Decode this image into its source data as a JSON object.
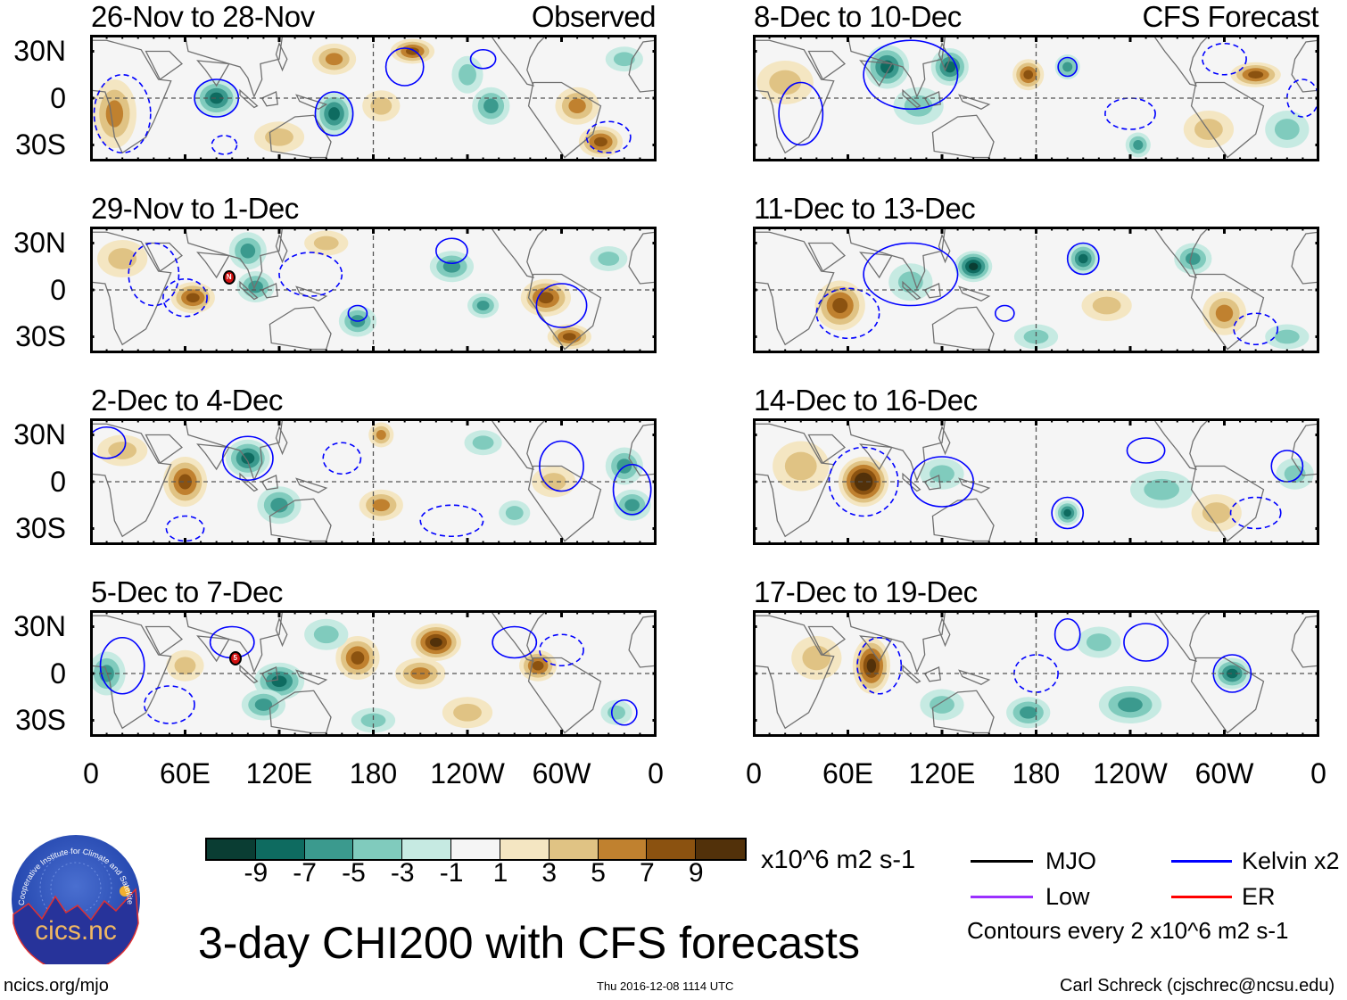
{
  "chart_data": {
    "type": "heatmap",
    "title": "3-day CHI200 with CFS forecasts",
    "variable": "CHI200",
    "units": "x10^6 m2 s-1",
    "lon_ticks": [
      "0",
      "60E",
      "120E",
      "180",
      "120W",
      "60W",
      "0"
    ],
    "lat_ticks": [
      "30N",
      "0",
      "30S"
    ],
    "lat_range": [
      -40,
      40
    ],
    "lon_range": [
      0,
      360
    ],
    "colorbar": {
      "levels": [
        "-9",
        "-7",
        "-5",
        "-3",
        "-1",
        "1",
        "3",
        "5",
        "7",
        "9"
      ],
      "colors": [
        "#0a3d33",
        "#0e6b60",
        "#3b9a8e",
        "#80cbbd",
        "#c6eae2",
        "#f5f5f5",
        "#f4e6c2",
        "#e0c384",
        "#c0812f",
        "#8b5210",
        "#52310a"
      ]
    },
    "contour_legend": [
      {
        "label": "MJO",
        "color": "#000000"
      },
      {
        "label": "Kelvin x2",
        "color": "#0000ff"
      },
      {
        "label": "Low",
        "color": "#9b30ff"
      },
      {
        "label": "ER",
        "color": "#ff0000"
      }
    ],
    "contour_note": "Contours every 2 x10^6 m2 s-1",
    "panels": [
      {
        "title": "26-Nov to 28-Nov",
        "label": "Observed",
        "anomalies": [
          [
            15,
            -10,
            5,
            14,
            22
          ],
          [
            80,
            0,
            -7,
            14,
            12
          ],
          [
            155,
            -10,
            -7,
            12,
            14
          ],
          [
            155,
            25,
            5,
            14,
            10
          ],
          [
            185,
            -5,
            3,
            12,
            10
          ],
          [
            205,
            30,
            7,
            14,
            8
          ],
          [
            240,
            15,
            -3,
            10,
            12
          ],
          [
            255,
            -5,
            -5,
            12,
            12
          ],
          [
            310,
            -5,
            5,
            14,
            12
          ],
          [
            325,
            -28,
            7,
            14,
            10
          ],
          [
            120,
            -25,
            3,
            16,
            10
          ],
          [
            340,
            25,
            -3,
            12,
            8
          ]
        ],
        "kelvin": [
          [
            80,
            0,
            14,
            12,
            0
          ],
          [
            155,
            -10,
            12,
            14,
            0
          ],
          [
            200,
            20,
            12,
            12,
            0
          ],
          [
            250,
            25,
            8,
            6,
            0
          ],
          [
            20,
            -10,
            18,
            25,
            1
          ],
          [
            85,
            -30,
            8,
            6,
            1
          ],
          [
            330,
            -25,
            14,
            10,
            1
          ]
        ]
      },
      {
        "title": "29-Nov to 1-Dec",
        "label": "",
        "anomalies": [
          [
            65,
            -5,
            7,
            14,
            10
          ],
          [
            100,
            25,
            -5,
            12,
            12
          ],
          [
            105,
            2,
            -5,
            12,
            10
          ],
          [
            170,
            -20,
            -5,
            12,
            10
          ],
          [
            230,
            15,
            -5,
            14,
            10
          ],
          [
            250,
            -10,
            -5,
            10,
            8
          ],
          [
            290,
            -5,
            7,
            16,
            12
          ],
          [
            305,
            -30,
            7,
            14,
            8
          ],
          [
            150,
            30,
            3,
            14,
            8
          ],
          [
            20,
            20,
            3,
            16,
            12
          ],
          [
            330,
            20,
            -3,
            12,
            8
          ]
        ],
        "kelvin": [
          [
            230,
            25,
            10,
            8,
            0
          ],
          [
            170,
            -15,
            6,
            5,
            0
          ],
          [
            300,
            -10,
            16,
            14,
            0
          ],
          [
            60,
            -5,
            14,
            12,
            1
          ],
          [
            140,
            10,
            20,
            14,
            1
          ],
          [
            40,
            10,
            16,
            20,
            1
          ]
        ],
        "storm": {
          "lon": 88,
          "lat": 8,
          "label": "N"
        }
      },
      {
        "title": "2-Dec to 4-Dec",
        "label": "",
        "anomalies": [
          [
            60,
            0,
            7,
            14,
            16
          ],
          [
            100,
            15,
            -7,
            14,
            12
          ],
          [
            120,
            -15,
            -5,
            14,
            12
          ],
          [
            185,
            -15,
            5,
            14,
            10
          ],
          [
            185,
            30,
            5,
            8,
            8
          ],
          [
            340,
            10,
            -5,
            12,
            12
          ],
          [
            345,
            -15,
            -5,
            12,
            10
          ],
          [
            295,
            0,
            3,
            14,
            10
          ],
          [
            270,
            -20,
            -3,
            10,
            8
          ],
          [
            20,
            20,
            3,
            16,
            10
          ],
          [
            250,
            25,
            -3,
            12,
            8
          ]
        ],
        "kelvin": [
          [
            100,
            15,
            16,
            14,
            0
          ],
          [
            300,
            10,
            14,
            16,
            0
          ],
          [
            345,
            -5,
            12,
            16,
            0
          ],
          [
            10,
            25,
            12,
            10,
            0
          ],
          [
            160,
            15,
            12,
            10,
            1
          ],
          [
            60,
            -30,
            12,
            8,
            1
          ],
          [
            230,
            -25,
            20,
            10,
            1
          ]
        ]
      },
      {
        "title": "5-Dec to 7-Dec",
        "label": "",
        "anomalies": [
          [
            10,
            0,
            -5,
            12,
            14
          ],
          [
            60,
            5,
            3,
            12,
            10
          ],
          [
            120,
            -5,
            -7,
            16,
            12
          ],
          [
            110,
            -20,
            -5,
            14,
            10
          ],
          [
            170,
            10,
            7,
            14,
            14
          ],
          [
            220,
            20,
            9,
            16,
            12
          ],
          [
            210,
            0,
            5,
            16,
            10
          ],
          [
            285,
            5,
            7,
            12,
            10
          ],
          [
            240,
            -25,
            3,
            16,
            10
          ],
          [
            180,
            -30,
            -3,
            14,
            8
          ],
          [
            150,
            25,
            -3,
            14,
            10
          ],
          [
            335,
            -25,
            -3,
            10,
            8
          ]
        ],
        "kelvin": [
          [
            20,
            5,
            14,
            18,
            0
          ],
          [
            90,
            20,
            14,
            10,
            0
          ],
          [
            340,
            -25,
            8,
            8,
            0
          ],
          [
            270,
            20,
            14,
            10,
            0
          ],
          [
            50,
            -20,
            16,
            12,
            1
          ],
          [
            300,
            15,
            14,
            10,
            1
          ]
        ],
        "storm": {
          "lon": 92,
          "lat": 10,
          "label": "5"
        }
      },
      {
        "title": "8-Dec to 10-Dec",
        "label": "CFS Forecast",
        "anomalies": [
          [
            85,
            20,
            -7,
            14,
            14
          ],
          [
            125,
            20,
            -7,
            12,
            12
          ],
          [
            175,
            15,
            7,
            10,
            10
          ],
          [
            200,
            20,
            -5,
            8,
            8
          ],
          [
            320,
            15,
            7,
            16,
            8
          ],
          [
            245,
            -30,
            -5,
            8,
            8
          ],
          [
            290,
            -20,
            3,
            16,
            12
          ],
          [
            20,
            10,
            3,
            18,
            14
          ],
          [
            105,
            -5,
            -3,
            16,
            12
          ],
          [
            340,
            -20,
            -3,
            14,
            12
          ]
        ],
        "kelvin": [
          [
            100,
            15,
            30,
            22,
            0
          ],
          [
            30,
            -10,
            14,
            20,
            0
          ],
          [
            200,
            20,
            6,
            6,
            0
          ],
          [
            240,
            -10,
            16,
            10,
            1
          ],
          [
            300,
            25,
            14,
            10,
            1
          ],
          [
            350,
            0,
            10,
            12,
            1
          ]
        ]
      },
      {
        "title": "11-Dec to 13-Dec",
        "label": "",
        "anomalies": [
          [
            55,
            -10,
            7,
            16,
            16
          ],
          [
            140,
            15,
            -9,
            12,
            10
          ],
          [
            210,
            20,
            -7,
            10,
            10
          ],
          [
            280,
            20,
            -5,
            12,
            10
          ],
          [
            300,
            -15,
            5,
            14,
            14
          ],
          [
            100,
            5,
            -3,
            14,
            12
          ],
          [
            225,
            -10,
            3,
            16,
            10
          ],
          [
            340,
            -30,
            -3,
            14,
            8
          ],
          [
            180,
            -30,
            -3,
            14,
            8
          ]
        ],
        "kelvin": [
          [
            100,
            10,
            30,
            20,
            0
          ],
          [
            210,
            20,
            10,
            10,
            0
          ],
          [
            160,
            -15,
            6,
            5,
            0
          ],
          [
            60,
            -15,
            20,
            16,
            1
          ],
          [
            320,
            -25,
            14,
            10,
            1
          ]
        ]
      },
      {
        "title": "14-Dec to 16-Dec",
        "label": "",
        "anomalies": [
          [
            70,
            0,
            11,
            16,
            16
          ],
          [
            120,
            5,
            -3,
            14,
            10
          ],
          [
            200,
            -20,
            -7,
            8,
            8
          ],
          [
            30,
            10,
            3,
            18,
            16
          ],
          [
            260,
            -5,
            -3,
            20,
            12
          ],
          [
            295,
            -20,
            3,
            16,
            12
          ],
          [
            345,
            5,
            -3,
            12,
            10
          ]
        ],
        "kelvin": [
          [
            120,
            0,
            20,
            16,
            0
          ],
          [
            200,
            -20,
            10,
            10,
            0
          ],
          [
            340,
            10,
            10,
            10,
            0
          ],
          [
            250,
            20,
            12,
            8,
            0
          ],
          [
            70,
            0,
            22,
            22,
            1
          ],
          [
            320,
            -20,
            16,
            10,
            1
          ]
        ]
      },
      {
        "title": "17-Dec to 19-Dec",
        "label": "",
        "anomalies": [
          [
            75,
            5,
            9,
            12,
            18
          ],
          [
            175,
            -25,
            -5,
            14,
            10
          ],
          [
            240,
            -20,
            -5,
            20,
            12
          ],
          [
            305,
            0,
            -7,
            12,
            10
          ],
          [
            120,
            -20,
            -3,
            14,
            10
          ],
          [
            40,
            10,
            3,
            16,
            14
          ],
          [
            220,
            20,
            -3,
            14,
            10
          ]
        ],
        "kelvin": [
          [
            305,
            0,
            12,
            12,
            0
          ],
          [
            200,
            25,
            8,
            10,
            0
          ],
          [
            250,
            20,
            14,
            12,
            0
          ],
          [
            80,
            5,
            14,
            18,
            1
          ],
          [
            180,
            0,
            14,
            12,
            1
          ]
        ]
      }
    ]
  },
  "colorbar_units": "x10^6 m2 s-1",
  "footer": {
    "title": "3-day CHI200 with CFS forecasts",
    "url": "ncics.org/mjo",
    "timestamp": "Thu 2016-12-08 1114 UTC",
    "author": "Carl Schreck (cjschrec@ncsu.edu)"
  },
  "logo": {
    "name": "cics.nc",
    "ring_text": "Cooperative Institute for Climate and Satellites"
  }
}
